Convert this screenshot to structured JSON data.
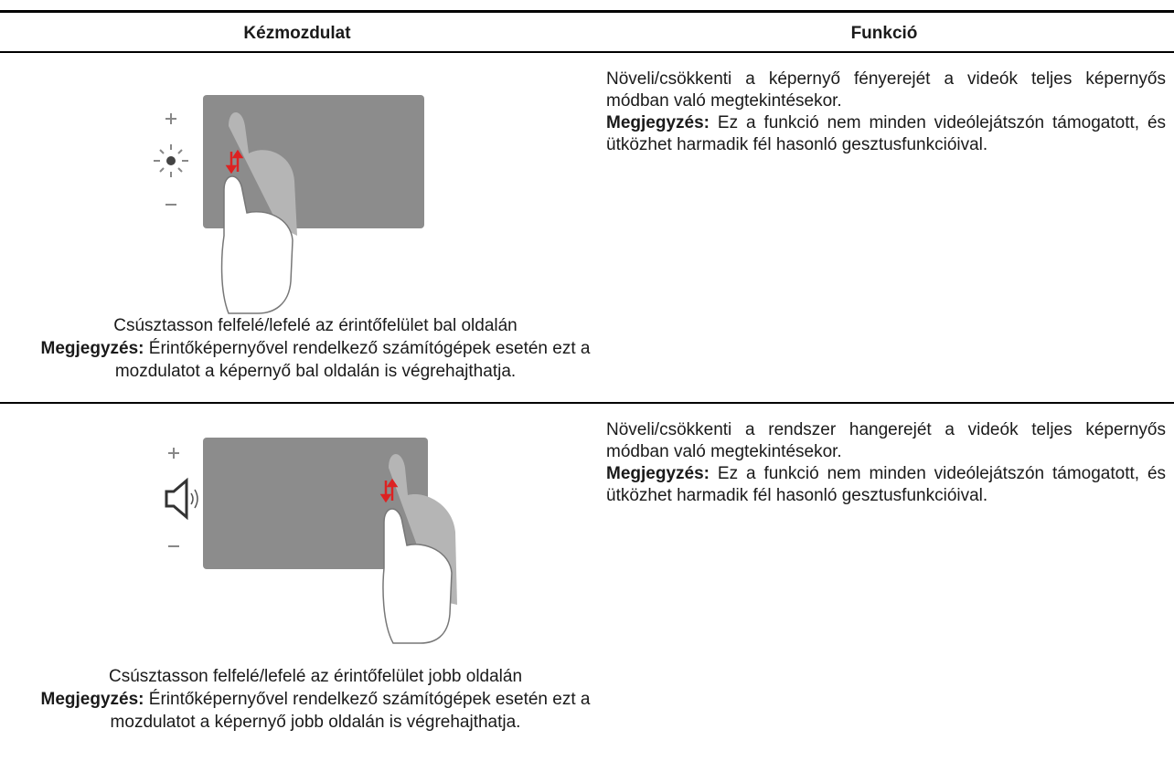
{
  "table": {
    "headers": [
      "Kézmozdulat",
      "Funkció"
    ],
    "rows": [
      {
        "gesture": {
          "caption": "Csúsztasson felfelé/lefelé az érintőfelület bal oldalán",
          "note_label": "Megjegyzés:",
          "note_text": "Érintőképernyővel rendelkező számítógépek esetén ezt a mozdulatot a képernyő bal oldalán is végrehajthatja."
        },
        "function": {
          "text": "Növeli/csökkenti a képernyő fényerejét a videók teljes képernyős módban való megtekintésekor.",
          "note_label": "Megjegyzés:",
          "note_text": "Ez a funkció nem minden videólejátszón támogatott, és ütközhet harmadik fél hasonló gesztusfunkcióival."
        }
      },
      {
        "gesture": {
          "caption": "Csúsztasson felfelé/lefelé az érintőfelület jobb oldalán",
          "note_label": "Megjegyzés:",
          "note_text": "Érintőképernyővel rendelkező számítógépek esetén ezt a mozdulatot a képernyő jobb oldalán is végrehajthatja."
        },
        "function": {
          "text": "Növeli/csökkenti a rendszer hangerejét a videók teljes képernyős módban való megtekintésekor.",
          "note_label": "Megjegyzés:",
          "note_text": "Ez a funkció nem minden videólejátszón támogatott, és ütközhet harmadik fél hasonló gesztusfunkcióival."
        }
      }
    ]
  }
}
